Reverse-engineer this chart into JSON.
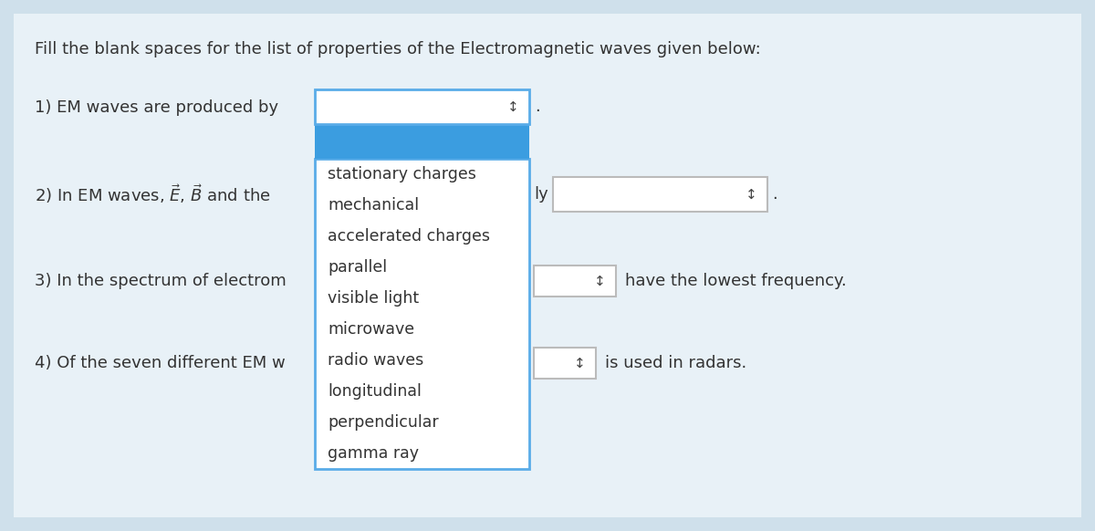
{
  "bg_color": "#cfe0eb",
  "panel_color": "#ddeaf3",
  "title": "Fill the blank spaces for the list of properties of the Electromagnetic waves given below:",
  "q1_text": "1) EM waves are produced by",
  "q2_text": "2) In EM waves, $\\vec{E}$, $\\vec{B}$ and the",
  "q3_text": "3) In the spectrum of electrom",
  "q4_text": "4) Of the seven different EM w",
  "q2_ly": "ly",
  "q3_suffix": "have the lowest frequency.",
  "q4_suffix": "is used in radars.",
  "dropdown_items": [
    "stationary charges",
    "mechanical",
    "accelerated charges",
    "parallel",
    "visible light",
    "microwave",
    "radio waves",
    "longitudinal",
    "perpendicular",
    "gamma ray"
  ],
  "highlight_color": "#3b9de0",
  "dropdown_border_color": "#5aace8",
  "white": "#ffffff",
  "gray_border": "#bbbbbb",
  "text_color": "#333333",
  "arrow_color": "#444444",
  "title_fs": 13,
  "q_fs": 13,
  "item_fs": 12.5,
  "suffix_fs": 13
}
